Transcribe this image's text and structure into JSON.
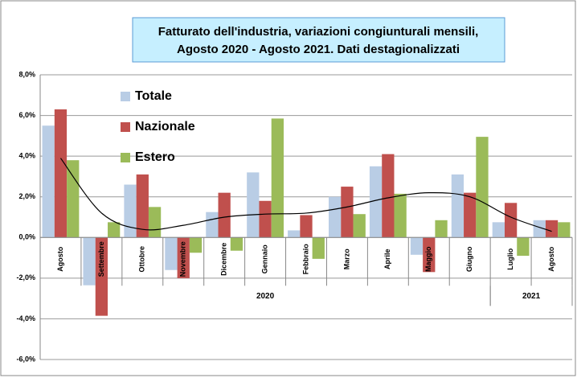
{
  "chart_data": {
    "type": "bar",
    "title": [
      "Fatturato dell'industria, variazioni congiunturali mensili,",
      "Agosto 2020 - Agosto 2021. Dati destagionalizzati"
    ],
    "categories": [
      "Agosto",
      "Settembre",
      "Ottobre",
      "Novembre",
      "Dicembre",
      "Gennaio",
      "Febbraio",
      "Marzo",
      "Aprile",
      "Maggio",
      "Giugno",
      "Luglio",
      "Agosto"
    ],
    "x_groups": [
      {
        "label": "2020",
        "start": 0,
        "end": 10
      },
      {
        "label": "2021",
        "start": 11,
        "end": 12
      }
    ],
    "series": [
      {
        "name": "Totale",
        "color": "#b9cde5",
        "values": [
          5.5,
          -2.35,
          2.6,
          -1.6,
          1.25,
          3.2,
          0.35,
          2.0,
          3.5,
          -0.85,
          3.1,
          0.75,
          0.85
        ]
      },
      {
        "name": "Nazionale",
        "color": "#c0504d",
        "values": [
          6.3,
          -3.85,
          3.1,
          -2.0,
          2.2,
          1.8,
          1.1,
          2.5,
          4.1,
          -1.7,
          2.2,
          1.7,
          0.85
        ]
      },
      {
        "name": "Estero",
        "color": "#9bbb59",
        "values": [
          3.8,
          0.75,
          1.5,
          -0.75,
          -0.65,
          5.85,
          -1.05,
          1.15,
          2.15,
          0.85,
          4.95,
          -0.9,
          0.75
        ]
      }
    ],
    "trend": {
      "color": "#000000",
      "values": [
        3.9,
        1.2,
        0.4,
        0.6,
        1.0,
        1.15,
        1.2,
        1.5,
        1.95,
        2.2,
        2.0,
        1.0,
        0.3
      ]
    },
    "ylim": [
      -6,
      8
    ],
    "yticks": [
      {
        "value": -6,
        "label": "-6,0%"
      },
      {
        "value": -4,
        "label": "-4,0%"
      },
      {
        "value": -2,
        "label": "-2,0%"
      },
      {
        "value": 0,
        "label": "0,0%"
      },
      {
        "value": 2,
        "label": "2,0%"
      },
      {
        "value": 4,
        "label": "4,0%"
      },
      {
        "value": 6,
        "label": "6,0%"
      },
      {
        "value": 8,
        "label": "8,0%"
      }
    ],
    "grid": true,
    "legend": "upper-left"
  }
}
